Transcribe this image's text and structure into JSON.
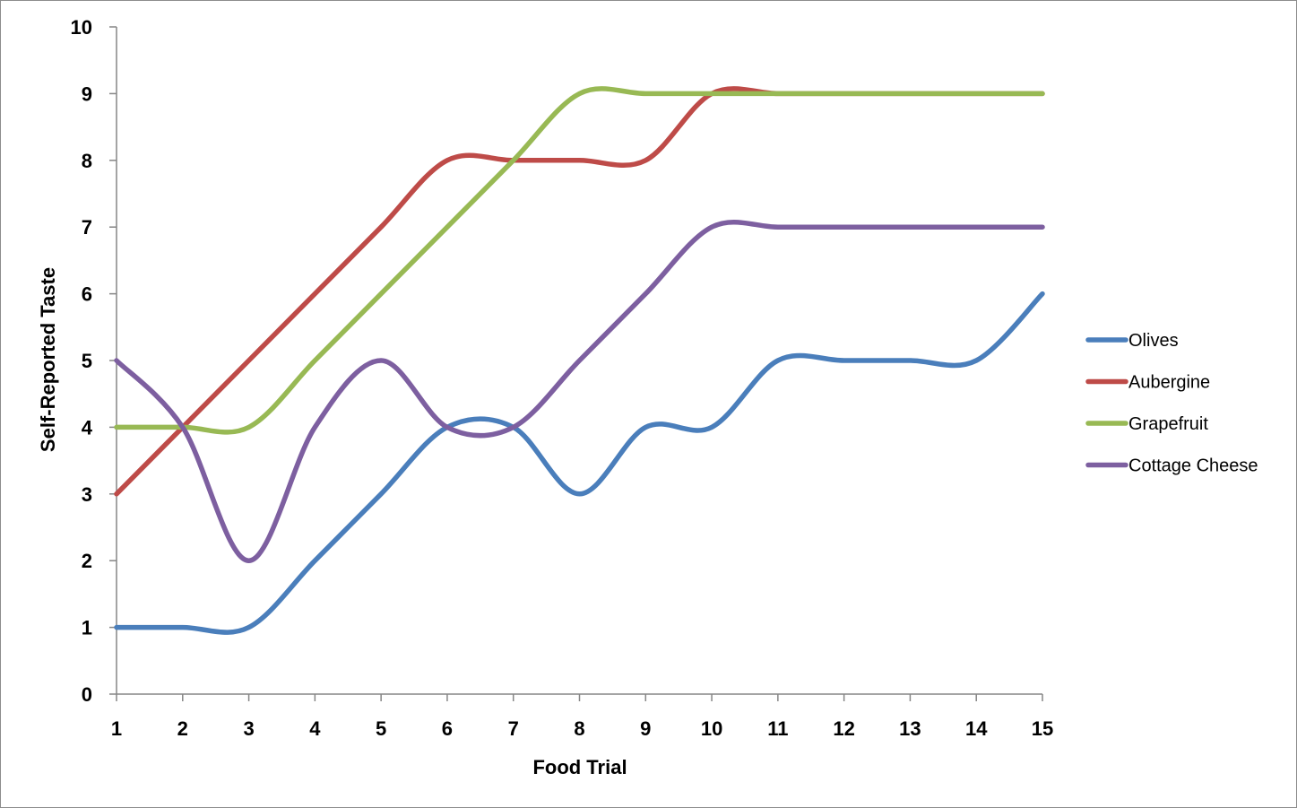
{
  "chart_data": {
    "type": "line",
    "smooth": true,
    "title": "",
    "xlabel": "Food Trial",
    "ylabel": "Self-Reported Taste",
    "x": [
      1,
      2,
      3,
      4,
      5,
      6,
      7,
      8,
      9,
      10,
      11,
      12,
      13,
      14,
      15
    ],
    "xlim": [
      1,
      15
    ],
    "ylim": [
      0,
      10
    ],
    "yticks": [
      0,
      1,
      2,
      3,
      4,
      5,
      6,
      7,
      8,
      9,
      10
    ],
    "grid": false,
    "legend_position": "right",
    "series": [
      {
        "name": "Olives",
        "color": "#4a7ebb",
        "values": [
          1,
          1,
          1,
          2,
          3,
          4,
          4,
          3,
          4,
          4,
          5,
          5,
          5,
          5,
          6
        ]
      },
      {
        "name": "Aubergine",
        "color": "#be4b48",
        "values": [
          3,
          4,
          5,
          6,
          7,
          8,
          8,
          8,
          8,
          9,
          9,
          9,
          9,
          9,
          9
        ]
      },
      {
        "name": "Grapefruit",
        "color": "#98b954",
        "values": [
          4,
          4,
          4,
          5,
          6,
          7,
          8,
          9,
          9,
          9,
          9,
          9,
          9,
          9,
          9
        ]
      },
      {
        "name": "Cottage Cheese",
        "color": "#7d5fa0",
        "values": [
          5,
          4,
          2,
          4,
          5,
          4,
          4,
          5,
          6,
          7,
          7,
          7,
          7,
          7,
          7
        ]
      }
    ]
  }
}
